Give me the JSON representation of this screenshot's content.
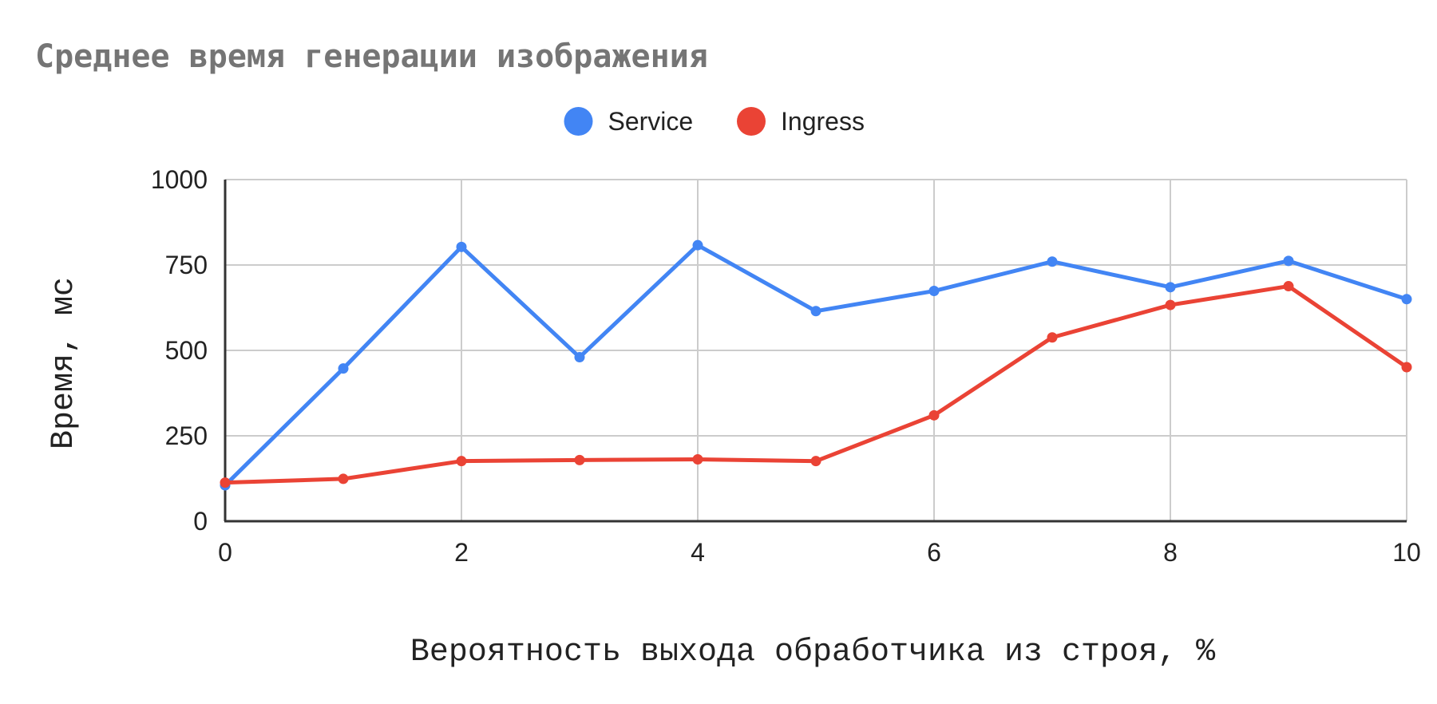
{
  "chart_data": {
    "type": "line",
    "title": "Среднее время генерации изображения",
    "xlabel": "Вероятность выхода обработчика из строя, %",
    "ylabel": "Время, мс",
    "x": [
      0,
      1,
      2,
      3,
      4,
      5,
      6,
      7,
      8,
      9,
      10
    ],
    "xlim": [
      0,
      10
    ],
    "ylim": [
      0,
      1000
    ],
    "xticks": [
      "0",
      "2",
      "4",
      "6",
      "8",
      "10"
    ],
    "yticks": [
      "0",
      "250",
      "500",
      "750",
      "1000"
    ],
    "grid": true,
    "legend_position": "top",
    "series": [
      {
        "name": "Service",
        "color": "#4285f4",
        "values": [
          105,
          447,
          803,
          480,
          808,
          615,
          674,
          760,
          685,
          762,
          650
        ]
      },
      {
        "name": "Ingress",
        "color": "#ea4335",
        "values": [
          113,
          124,
          176,
          179,
          181,
          176,
          310,
          538,
          633,
          688,
          451
        ]
      }
    ]
  }
}
